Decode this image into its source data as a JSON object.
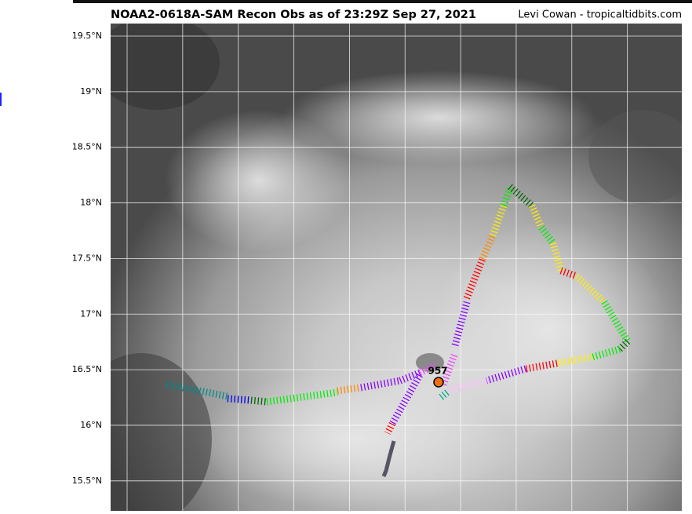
{
  "map": {
    "title": "NOAA2-0618A-SAM Recon Obs as of 23:29Z Sep 27, 2021",
    "credit": "Levi Cowan - tropicaltidbits.com",
    "lat_labels": [
      "19.5°N",
      "19°N",
      "18.5°N",
      "18°N",
      "17.5°N",
      "17°N",
      "16.5°N",
      "16°N",
      "15.5°N"
    ],
    "center_label": "957"
  }
}
